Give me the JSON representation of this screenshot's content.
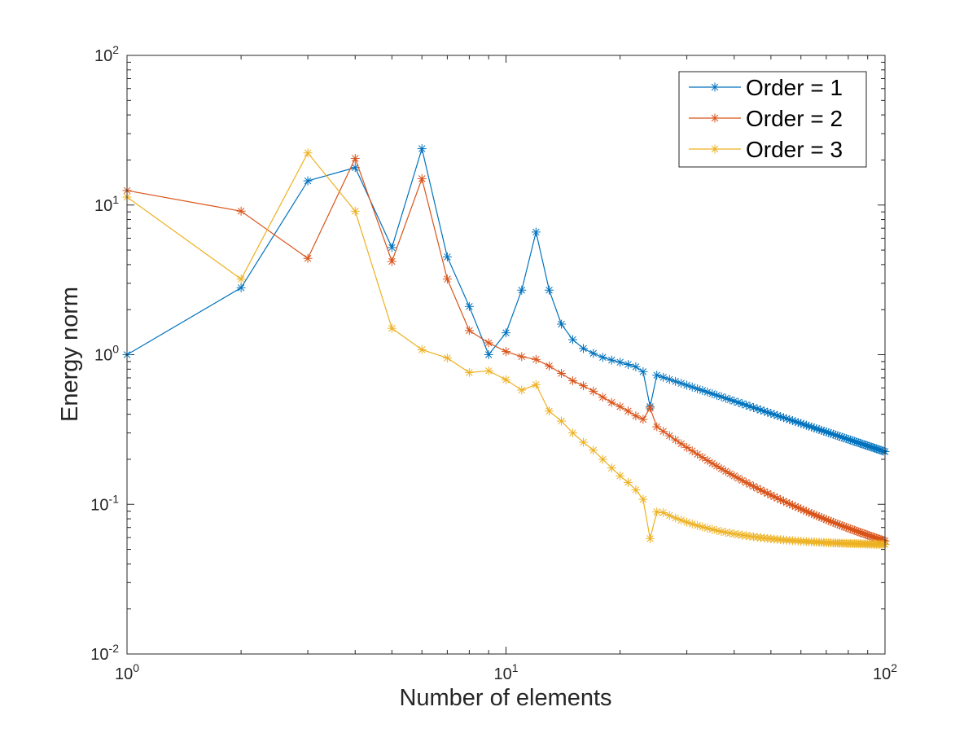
{
  "chart_data": {
    "type": "line",
    "title": "",
    "xlabel": "Number of elements",
    "ylabel": "Energy norm",
    "x_scale": "log",
    "y_scale": "log",
    "xlim": [
      1,
      100
    ],
    "ylim": [
      0.01,
      100
    ],
    "grid": false,
    "legend_position": "top-right",
    "x_ticks": [
      {
        "value": 1,
        "base": "10",
        "exp": "0"
      },
      {
        "value": 10,
        "base": "10",
        "exp": "1"
      },
      {
        "value": 100,
        "base": "10",
        "exp": "2"
      }
    ],
    "y_ticks": [
      {
        "value": 0.01,
        "base": "10",
        "exp": "-2"
      },
      {
        "value": 0.1,
        "base": "10",
        "exp": "-1"
      },
      {
        "value": 1,
        "base": "10",
        "exp": "0"
      },
      {
        "value": 10,
        "base": "10",
        "exp": "1"
      },
      {
        "value": 100,
        "base": "10",
        "exp": "2"
      }
    ],
    "marker": "asterisk",
    "series": [
      {
        "name": "Order = 1",
        "color": "#0072BD",
        "points": [
          [
            1,
            1.0
          ],
          [
            2,
            2.8
          ],
          [
            3,
            14.5
          ],
          [
            4,
            17.8
          ],
          [
            5,
            5.2
          ],
          [
            6,
            23.8
          ],
          [
            7,
            4.5
          ],
          [
            8,
            2.1
          ],
          [
            9,
            1.0
          ],
          [
            10,
            1.4
          ],
          [
            11,
            2.7
          ],
          [
            12,
            6.6
          ],
          [
            13,
            2.7
          ],
          [
            14,
            1.6
          ],
          [
            15,
            1.26
          ],
          [
            16,
            1.1
          ],
          [
            17,
            1.02
          ],
          [
            18,
            0.96
          ],
          [
            19,
            0.92
          ],
          [
            20,
            0.89
          ],
          [
            21,
            0.86
          ],
          [
            22,
            0.83
          ],
          [
            23,
            0.77
          ],
          [
            24,
            0.45
          ],
          [
            25,
            0.73
          ]
        ],
        "tail": {
          "from": 25,
          "to": 100,
          "y_start": 0.73,
          "y_end": 0.225,
          "curvature": 0
        }
      },
      {
        "name": "Order = 2",
        "color": "#D95319",
        "points": [
          [
            1,
            12.5
          ],
          [
            2,
            9.1
          ],
          [
            3,
            4.4
          ],
          [
            4,
            20.5
          ],
          [
            5,
            4.2
          ],
          [
            6,
            15.0
          ],
          [
            7,
            3.2
          ],
          [
            8,
            1.45
          ],
          [
            9,
            1.2
          ],
          [
            10,
            1.05
          ],
          [
            11,
            0.97
          ],
          [
            12,
            0.93
          ],
          [
            13,
            0.84
          ],
          [
            14,
            0.75
          ],
          [
            15,
            0.67
          ],
          [
            16,
            0.62
          ],
          [
            17,
            0.57
          ],
          [
            18,
            0.52
          ],
          [
            19,
            0.48
          ],
          [
            20,
            0.45
          ],
          [
            21,
            0.42
          ],
          [
            22,
            0.39
          ],
          [
            23,
            0.37
          ],
          [
            24,
            0.44
          ],
          [
            25,
            0.33
          ]
        ],
        "tail": {
          "from": 25,
          "to": 100,
          "y_start": 0.33,
          "y_end": 0.057,
          "curvature": 0.8
        }
      },
      {
        "name": "Order = 3",
        "color": "#EDB120",
        "points": [
          [
            1,
            11.3
          ],
          [
            2,
            3.2
          ],
          [
            3,
            22.3
          ],
          [
            4,
            9.1
          ],
          [
            5,
            1.5
          ],
          [
            6,
            1.08
          ],
          [
            7,
            0.95
          ],
          [
            8,
            0.76
          ],
          [
            9,
            0.78
          ],
          [
            10,
            0.68
          ],
          [
            11,
            0.58
          ],
          [
            12,
            0.63
          ],
          [
            13,
            0.42
          ],
          [
            14,
            0.36
          ],
          [
            15,
            0.3
          ],
          [
            16,
            0.26
          ],
          [
            17,
            0.23
          ],
          [
            18,
            0.2
          ],
          [
            19,
            0.175
          ],
          [
            20,
            0.155
          ],
          [
            21,
            0.14
          ],
          [
            22,
            0.125
          ],
          [
            23,
            0.108
          ],
          [
            24,
            0.059
          ],
          [
            25,
            0.089
          ],
          [
            26,
            0.088
          ]
        ],
        "tail": {
          "from": 26,
          "to": 100,
          "y_start": 0.088,
          "y_end": 0.054,
          "curvature": 3.2
        }
      }
    ]
  }
}
